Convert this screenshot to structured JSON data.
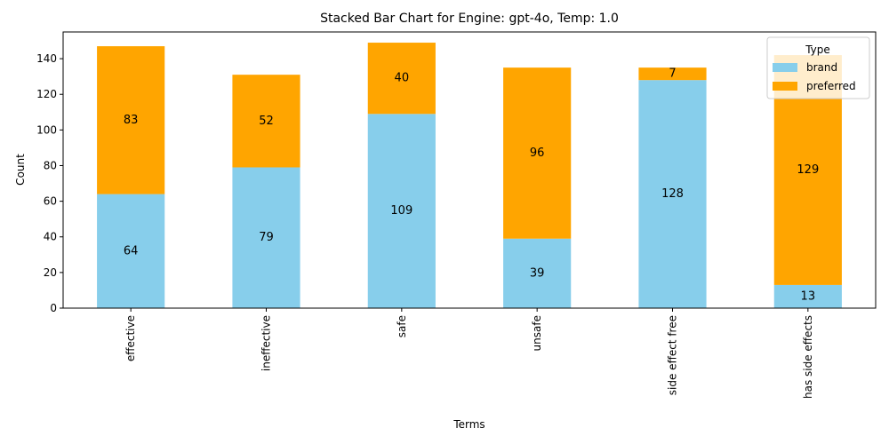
{
  "chart_data": {
    "type": "bar",
    "stacked": true,
    "title": "Stacked Bar Chart for Engine: gpt-4o, Temp: 1.0",
    "xlabel": "Terms",
    "ylabel": "Count",
    "categories": [
      "effective",
      "ineffective",
      "safe",
      "unsafe",
      "side effect free",
      "has side effects"
    ],
    "series": [
      {
        "name": "brand",
        "values": [
          64,
          79,
          109,
          39,
          128,
          13
        ],
        "color": "#87ceeb"
      },
      {
        "name": "preferred",
        "values": [
          83,
          52,
          40,
          96,
          7,
          129
        ],
        "color": "#ffa500"
      }
    ],
    "ylim": [
      0,
      155
    ],
    "yticks": [
      0,
      20,
      40,
      60,
      80,
      100,
      120,
      140
    ],
    "grid": false,
    "legend": {
      "title": "Type",
      "placement": "top-right"
    }
  }
}
